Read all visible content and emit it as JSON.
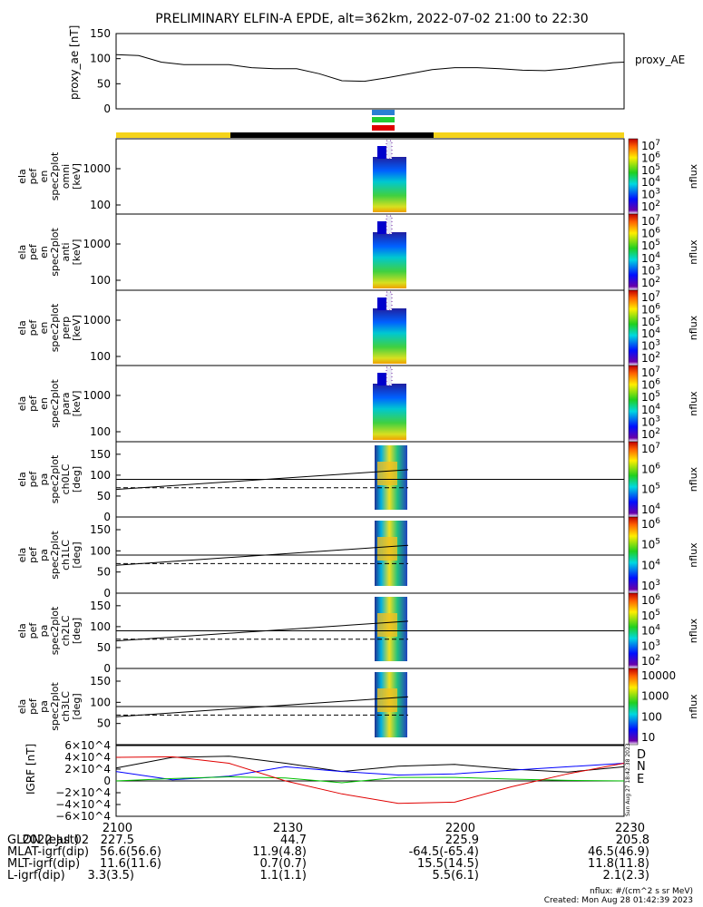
{
  "title": "PRELIMINARY ELFIN-A EPDE, alt=362km, 2022-07-02 21:00 to 22:30",
  "colors": {
    "ae_line": "#000000",
    "bar_yellow": "#f5d31a",
    "bar_black": "#000000",
    "marker_blue": "#2a7fd4",
    "marker_green": "#22cc33",
    "marker_red": "#e00000",
    "igrf_d": "#000000",
    "igrf_n": "#0000ff",
    "igrf_e": "#00c000",
    "igrf_extra": "#e00000"
  },
  "chart_data": [
    {
      "type": "line",
      "panel": "proxy_ae",
      "ylabel": "proxy_ae [nT]",
      "legend": "proxy_AE",
      "ylim": [
        0,
        150
      ],
      "yticks": [
        "150",
        "100",
        "50",
        "0"
      ],
      "xlim": [
        0,
        90
      ],
      "x": [
        0,
        4,
        8,
        12,
        16,
        20,
        24,
        28,
        32,
        36,
        40,
        44,
        48,
        52,
        56,
        60,
        64,
        68,
        72,
        76,
        80,
        84,
        88,
        90
      ],
      "values": [
        108,
        106,
        93,
        88,
        88,
        88,
        82,
        80,
        80,
        70,
        56,
        55,
        62,
        70,
        78,
        82,
        82,
        80,
        77,
        76,
        80,
        86,
        92,
        93
      ]
    },
    {
      "type": "heatmap",
      "panel": "ela_pef_en_spec2plot_omni",
      "ylabel": [
        "ela",
        "pef",
        "en",
        "spec2plot",
        "omni",
        "[keV]"
      ],
      "yscale": "log",
      "yticks": [
        "1000",
        "100"
      ],
      "colorbar": {
        "label": "nflux",
        "ticks": [
          "10^7",
          "10^6",
          "10^5",
          "10^4",
          "10^3",
          "10^2"
        ]
      }
    },
    {
      "type": "heatmap",
      "panel": "ela_pef_en_spec2plot_anti",
      "ylabel": [
        "ela",
        "pef",
        "en",
        "spec2plot",
        "anti",
        "[keV]"
      ],
      "yscale": "log",
      "yticks": [
        "1000",
        "100"
      ],
      "colorbar": {
        "label": "nflux",
        "ticks": [
          "10^7",
          "10^6",
          "10^5",
          "10^4",
          "10^3",
          "10^2"
        ]
      }
    },
    {
      "type": "heatmap",
      "panel": "ela_pef_en_spec2plot_perp",
      "ylabel": [
        "ela",
        "pef",
        "en",
        "spec2plot",
        "perp",
        "[keV]"
      ],
      "yscale": "log",
      "yticks": [
        "1000",
        "100"
      ],
      "colorbar": {
        "label": "nflux",
        "ticks": [
          "10^7",
          "10^6",
          "10^5",
          "10^4",
          "10^3",
          "10^2"
        ]
      }
    },
    {
      "type": "heatmap",
      "panel": "ela_pef_en_spec2plot_para",
      "ylabel": [
        "ela",
        "pef",
        "en",
        "spec2plot",
        "para",
        "[keV]"
      ],
      "yscale": "log",
      "yticks": [
        "1000",
        "100"
      ],
      "colorbar": {
        "label": "nflux",
        "ticks": [
          "10^7",
          "10^6",
          "10^5",
          "10^4",
          "10^3",
          "10^2"
        ]
      }
    },
    {
      "type": "heatmap",
      "panel": "ela_pef_pa_spec2plot_ch0LC",
      "ylabel": [
        "ela",
        "pef",
        "pa",
        "spec2plot",
        "ch0LC",
        "[deg]"
      ],
      "ylim": [
        0,
        180
      ],
      "yticks": [
        "150",
        "100",
        "50",
        "0"
      ],
      "colorbar": {
        "label": "nflux",
        "ticks": [
          "10^7",
          "10^6",
          "10^5",
          "10^4"
        ]
      }
    },
    {
      "type": "heatmap",
      "panel": "ela_pef_pa_spec2plot_ch1LC",
      "ylabel": [
        "ela",
        "pef",
        "pa",
        "spec2plot",
        "ch1LC",
        "[deg]"
      ],
      "ylim": [
        0,
        180
      ],
      "yticks": [
        "150",
        "100",
        "50",
        "0"
      ],
      "colorbar": {
        "label": "nflux",
        "ticks": [
          "10^6",
          "10^5",
          "10^4",
          "10^3"
        ]
      }
    },
    {
      "type": "heatmap",
      "panel": "ela_pef_pa_spec2plot_ch2LC",
      "ylabel": [
        "ela",
        "pef",
        "pa",
        "spec2plot",
        "ch2LC",
        "[deg]"
      ],
      "ylim": [
        0,
        180
      ],
      "yticks": [
        "150",
        "100",
        "50",
        "0"
      ],
      "colorbar": {
        "label": "nflux",
        "ticks": [
          "10^6",
          "10^5",
          "10^4",
          "10^3",
          "10^2"
        ]
      }
    },
    {
      "type": "heatmap",
      "panel": "ela_pef_pa_spec2plot_ch3LC",
      "ylabel": [
        "ela",
        "pef",
        "pa",
        "spec2plot",
        "ch3LC",
        "[deg]"
      ],
      "ylim": [
        0,
        180
      ],
      "yticks": [
        "150",
        "100",
        "50"
      ],
      "colorbar": {
        "label": "nflux",
        "ticks": [
          "10000",
          "1000",
          "100",
          "10"
        ]
      }
    },
    {
      "type": "line",
      "panel": "igrf",
      "ylabel": "IGRF [nT]",
      "ylim": [
        -60000,
        60000
      ],
      "yticks": [
        "6×10^4",
        "4×10^4",
        "2×10^4",
        "0",
        "−2×10^4",
        "−4×10^4",
        "−6×10^4"
      ],
      "legend": [
        "D",
        "N",
        "E"
      ],
      "side_label": "Sun Aug 27 18:42:38 2023",
      "xlim": [
        0,
        90
      ],
      "series": [
        {
          "x": [
            0,
            10,
            20,
            30,
            40,
            50,
            60,
            70,
            80,
            90
          ],
          "values": [
            22000,
            40000,
            42000,
            30000,
            16000,
            25000,
            28000,
            20000,
            15000,
            24000
          ]
        },
        {
          "x": [
            0,
            10,
            20,
            30,
            40,
            50,
            60,
            70,
            80,
            90
          ],
          "values": [
            16000,
            2000,
            8000,
            24000,
            16000,
            10000,
            12000,
            18000,
            24000,
            30000
          ]
        },
        {
          "x": [
            0,
            10,
            20,
            30,
            40,
            50,
            60,
            70,
            80,
            90
          ],
          "values": [
            0,
            4000,
            7000,
            5000,
            -3000,
            6000,
            6000,
            3000,
            1000,
            0
          ]
        },
        {
          "x": [
            0,
            10,
            20,
            30,
            40,
            50,
            60,
            70,
            80,
            90
          ],
          "values": [
            40000,
            41000,
            30000,
            0,
            -22000,
            -38000,
            -36000,
            -10000,
            12000,
            30000
          ]
        }
      ]
    }
  ],
  "footer": {
    "rows": [
      {
        "label": "2022 Jul 02",
        "values": [
          "2100",
          "2130",
          "2200",
          "2230"
        ]
      },
      {
        "label": "GLON (east)",
        "values": [
          "227.5",
          "44.7",
          "225.9",
          "205.8"
        ]
      },
      {
        "label": "MLAT-igrf(dip)",
        "values": [
          "56.6(56.6)",
          "11.9(4.8)",
          "-64.5(-65.4)",
          "46.5(46.9)"
        ]
      },
      {
        "label": "MLT-igrf(dip)",
        "values": [
          "11.6(11.6)",
          "0.7(0.7)",
          "15.5(14.5)",
          "11.8(11.8)"
        ]
      },
      {
        "label": "L-igrf(dip)",
        "values": [
          "3.3(3.5)",
          "1.1(1.1)",
          "5.5(6.1)",
          "2.1(2.3)"
        ]
      }
    ],
    "units_note": "nflux: #/(cm^2 s sr MeV)",
    "created": "Created: Mon Aug 28 01:42:39 2023"
  }
}
